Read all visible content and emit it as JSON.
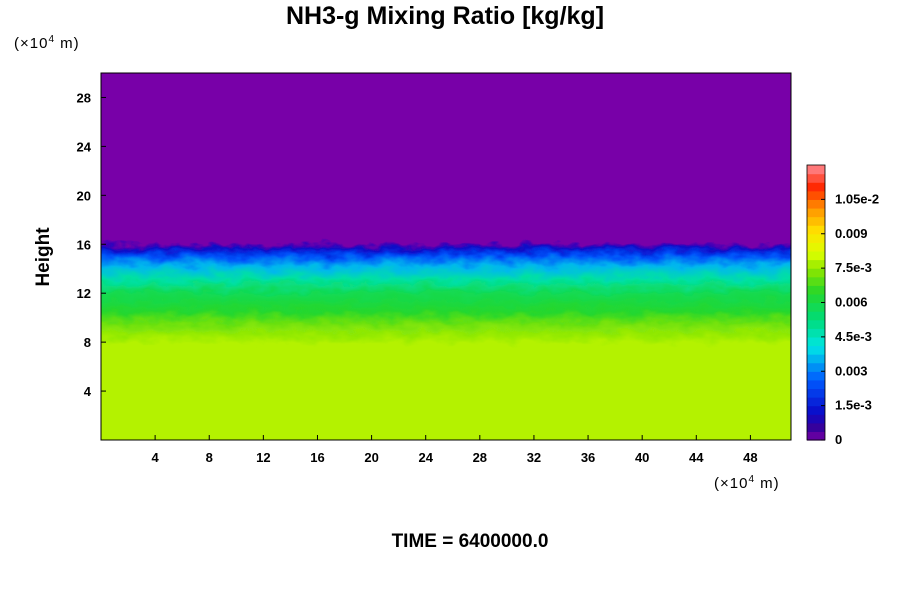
{
  "chart_data": {
    "type": "heatmap",
    "title": "NH3-g Mixing Ratio [kg/kg]",
    "xlabel": "",
    "ylabel": "Height",
    "x_unit": {
      "prefix": "(×10",
      "exp": "4",
      "suffix": " m)"
    },
    "y_unit": {
      "prefix": "(×10",
      "exp": "4",
      "suffix": " m)"
    },
    "xlim": [
      0,
      51
    ],
    "ylim": [
      0,
      30
    ],
    "x_ticks": [
      4,
      8,
      12,
      16,
      20,
      24,
      28,
      32,
      36,
      40,
      44,
      48
    ],
    "y_ticks": [
      4,
      8,
      12,
      16,
      20,
      24,
      28
    ],
    "colorbar": {
      "range": [
        0,
        0.012
      ],
      "tick_labels": [
        {
          "value": 0,
          "label": "0"
        },
        {
          "value": 0.0015,
          "label": "1.5e-3"
        },
        {
          "value": 0.003,
          "label": "0.003"
        },
        {
          "value": 0.0045,
          "label": "4.5e-3"
        },
        {
          "value": 0.006,
          "label": "0.006"
        },
        {
          "value": 0.0075,
          "label": "7.5e-3"
        },
        {
          "value": 0.009,
          "label": "0.009"
        },
        {
          "value": 0.0105,
          "label": "1.05e-2"
        }
      ]
    },
    "field_profile": [
      {
        "y": 0,
        "value": 0.0078
      },
      {
        "y": 9,
        "value": 0.0078
      },
      {
        "y": 10.5,
        "value": 0.0072
      },
      {
        "y": 11.5,
        "value": 0.0064
      },
      {
        "y": 13,
        "value": 0.0058
      },
      {
        "y": 14,
        "value": 0.0048
      },
      {
        "y": 15,
        "value": 0.0036
      },
      {
        "y": 15.8,
        "value": 0.0025
      },
      {
        "y": 16.4,
        "value": 0.0012
      },
      {
        "y": 16.8,
        "value": 0.0
      },
      {
        "y": 30,
        "value": 0.0
      }
    ]
  },
  "footer": {
    "time_label": "TIME = 6400000.0"
  }
}
